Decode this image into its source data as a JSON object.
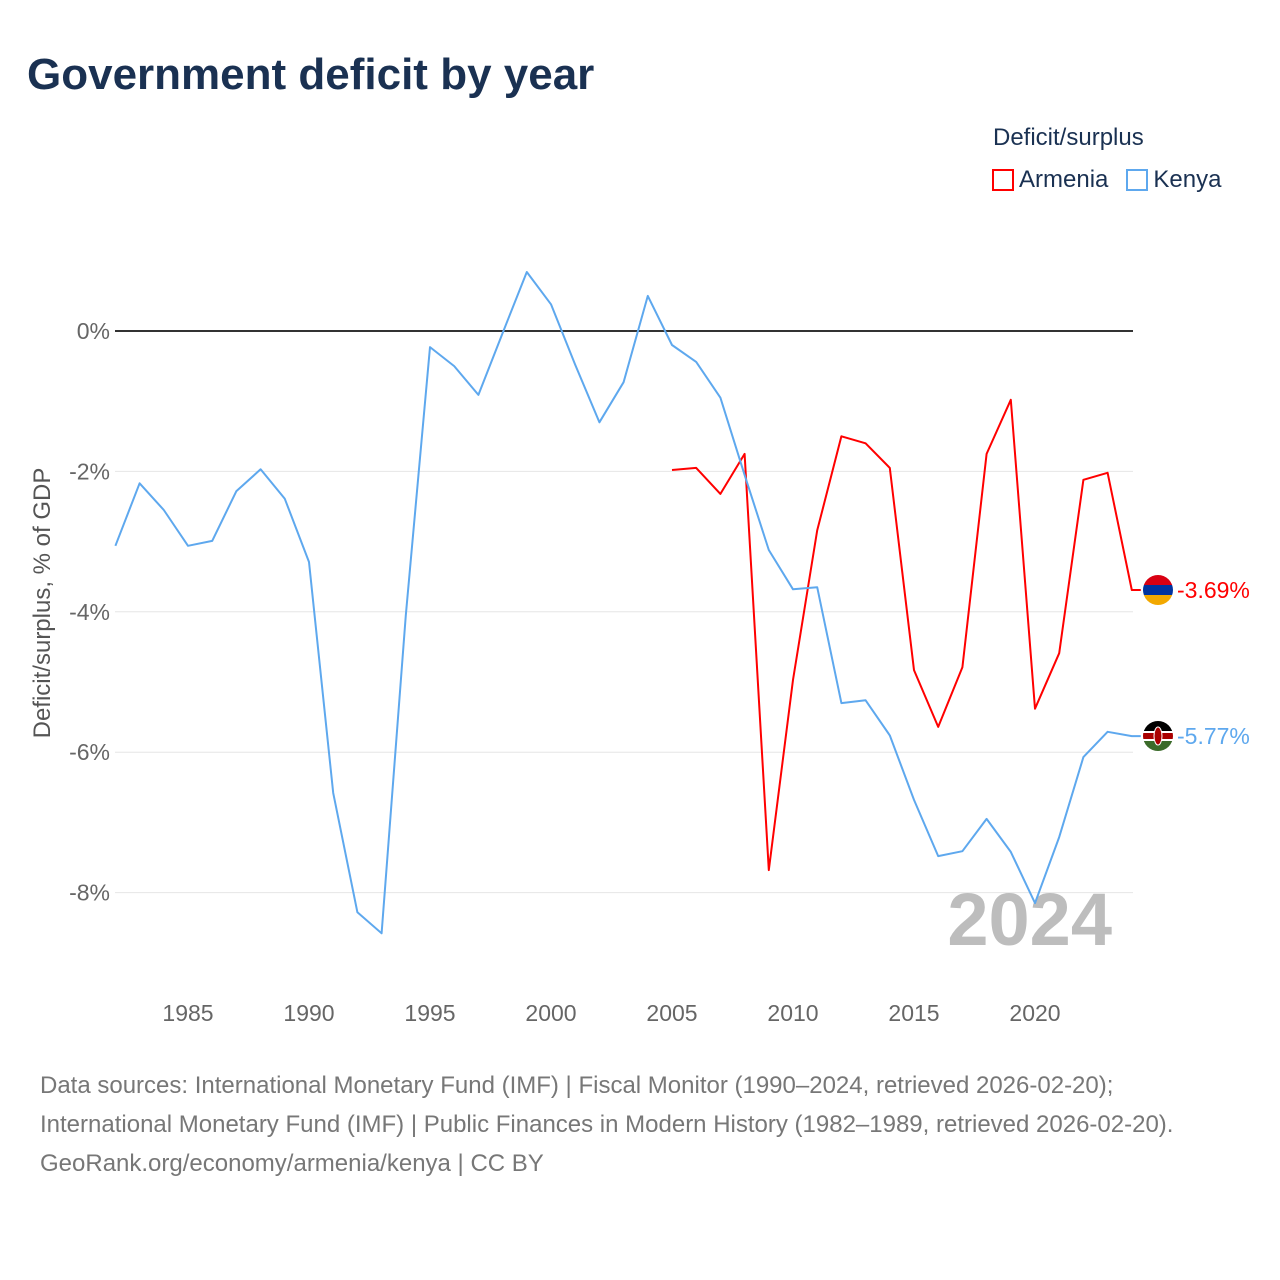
{
  "title": "Government deficit by year",
  "chart_data": {
    "type": "line",
    "title": "Government deficit by year",
    "xlabel": "",
    "ylabel": "Deficit/surplus, % of GDP",
    "xlim": [
      1982,
      2024
    ],
    "ylim": [
      -9.2,
      1.1
    ],
    "x_ticks": [
      1985,
      1990,
      1995,
      2000,
      2005,
      2010,
      2015,
      2020
    ],
    "x_tick_labels": [
      "1985",
      "1990",
      "1995",
      "2000",
      "2005",
      "2010",
      "2015",
      "2020"
    ],
    "y_ticks": [
      0,
      -2,
      -4,
      -6,
      -8
    ],
    "y_tick_labels": [
      "0%",
      "-2%",
      "-4%",
      "-6%",
      "-8%"
    ],
    "grid": true,
    "legend_title": "Deficit/surplus",
    "legend_position": "top-right",
    "year_watermark": "2024",
    "series": [
      {
        "name": "Armenia",
        "color": "#ff0000",
        "end_label": "-3.69%",
        "x": [
          2005,
          2006,
          2007,
          2008,
          2009,
          2010,
          2011,
          2012,
          2013,
          2014,
          2015,
          2016,
          2017,
          2018,
          2019,
          2020,
          2021,
          2022,
          2023,
          2024
        ],
        "values": [
          -1.98,
          -1.95,
          -2.32,
          -1.75,
          -7.68,
          -4.97,
          -2.84,
          -1.5,
          -1.6,
          -1.95,
          -4.83,
          -5.64,
          -4.79,
          -1.75,
          -0.98,
          -5.38,
          -4.59,
          -2.12,
          -2.02,
          -3.69
        ]
      },
      {
        "name": "Kenya",
        "color": "#5ea8ee",
        "end_label": "-5.77%",
        "x": [
          1982,
          1983,
          1984,
          1985,
          1986,
          1987,
          1988,
          1989,
          1990,
          1991,
          1992,
          1993,
          1994,
          1995,
          1996,
          1997,
          1998,
          1999,
          2000,
          2001,
          2002,
          2003,
          2004,
          2005,
          2006,
          2007,
          2008,
          2009,
          2010,
          2011,
          2012,
          2013,
          2014,
          2015,
          2016,
          2017,
          2018,
          2019,
          2020,
          2021,
          2022,
          2023,
          2024
        ],
        "values": [
          -3.06,
          -2.17,
          -2.55,
          -3.06,
          -2.99,
          -2.28,
          -1.97,
          -2.39,
          -3.29,
          -6.58,
          -8.28,
          -8.58,
          -4.05,
          -0.23,
          -0.5,
          -0.91,
          -0.03,
          0.84,
          0.38,
          -0.48,
          -1.3,
          -0.73,
          0.5,
          -0.2,
          -0.44,
          -0.95,
          -2.05,
          -3.12,
          -3.68,
          -3.65,
          -5.3,
          -5.26,
          -5.76,
          -6.68,
          -7.48,
          -7.41,
          -6.95,
          -7.42,
          -8.15,
          -7.21,
          -6.07,
          -5.71,
          -5.77
        ]
      }
    ]
  },
  "source_lines": [
    "Data sources: International Monetary Fund (IMF) | Fiscal Monitor (1990–2024, retrieved 2026-02-20); International Monetary Fund (IMF) | Public Finances in Modern History (1982–1989, retrieved 2026-02-20).",
    "GeoRank.org/economy/armenia/kenya | CC BY"
  ]
}
